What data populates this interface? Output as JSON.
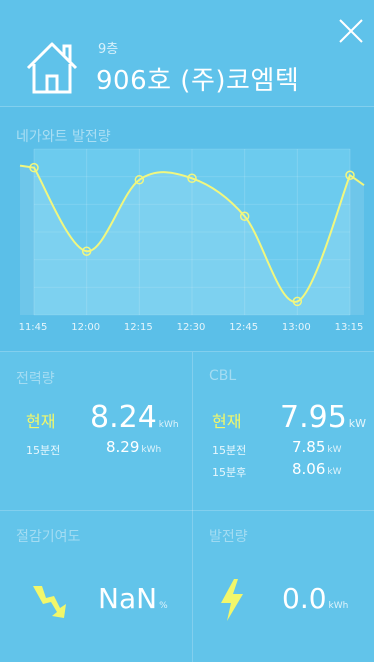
{
  "header": {
    "floor": "9층",
    "unit_name": "906호 (주)코엠텍",
    "close_icon": "close-icon",
    "home_icon": "home-icon"
  },
  "chart_data": {
    "type": "line",
    "title": "네가와트 발전량",
    "categories": [
      "11:45",
      "12:00",
      "12:15",
      "12:30",
      "12:45",
      "13:00",
      "13:15"
    ],
    "series": [
      {
        "values": [
          0.93,
          0.38,
          0.85,
          0.86,
          0.61,
          0.05,
          0.88
        ]
      }
    ],
    "ylim": [
      0,
      1
    ],
    "grid": true,
    "line_color": "#f1f77f"
  },
  "power": {
    "title": "전력량",
    "now_label": "현재",
    "now_value": "8.24",
    "now_unit": "kWh",
    "prev_label": "15분전",
    "prev_value": "8.29",
    "prev_unit": "kWh"
  },
  "cbl": {
    "title": "CBL",
    "now_label": "현재",
    "now_value": "7.95",
    "now_unit": "kW",
    "prev_label": "15분전",
    "prev_value": "7.85",
    "prev_unit": "kW",
    "next_label": "15분후",
    "next_value": "8.06",
    "next_unit": "kW"
  },
  "saving": {
    "title": "절감기여도",
    "value": "NaN",
    "unit": "%",
    "icon": "trend-down-icon"
  },
  "generation": {
    "title": "발전량",
    "value": "0.0",
    "unit": "kWh",
    "icon": "lightning-icon"
  }
}
